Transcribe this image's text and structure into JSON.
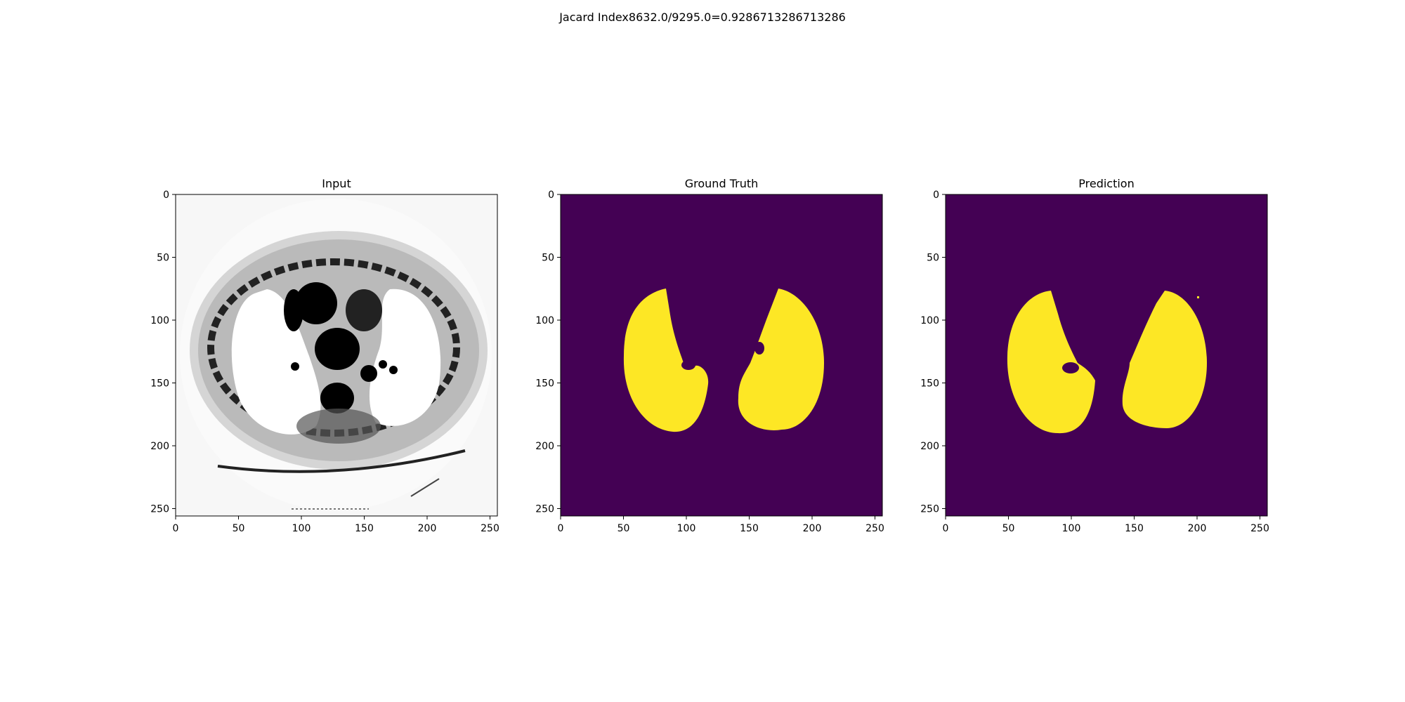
{
  "figure": {
    "suptitle": "Jacard Index8632.0/9295.0=0.9286713286713286"
  },
  "panels": [
    {
      "title": "Input"
    },
    {
      "title": "Ground Truth"
    },
    {
      "title": "Prediction"
    }
  ],
  "axes": {
    "xticks": [
      "0",
      "50",
      "100",
      "150",
      "200",
      "250"
    ],
    "yticks": [
      "0",
      "50",
      "100",
      "150",
      "200",
      "250"
    ]
  },
  "colors": {
    "mask_background": "#440154",
    "mask_foreground": "#fde725",
    "ct_background": "#f7f7f7",
    "ct_tissue": "#111111"
  }
}
